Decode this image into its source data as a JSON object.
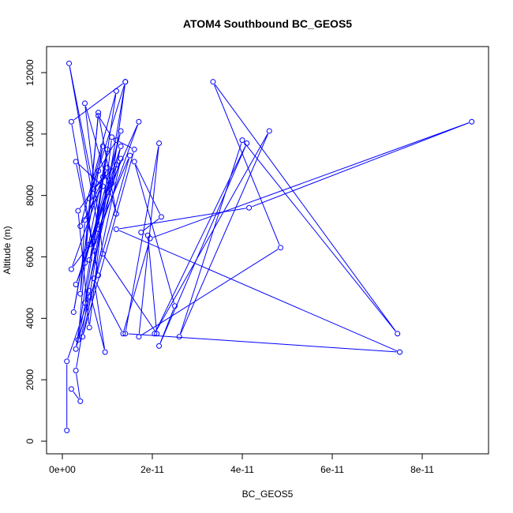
{
  "chart_data": {
    "type": "line",
    "title": "ATOM4 Southbound BC_GEOS5",
    "xlabel": "BC_GEOS5",
    "ylabel": "Altitude (m)",
    "xlim": [
      0,
      9.5e-11
    ],
    "ylim": [
      0,
      12800
    ],
    "x_ticks": [
      0,
      2e-11,
      4e-11,
      6e-11,
      8e-11
    ],
    "x_tick_labels": [
      "0e+00",
      "2e-11",
      "4e-11",
      "6e-11",
      "8e-11"
    ],
    "y_ticks": [
      0,
      2000,
      4000,
      6000,
      8000,
      10000,
      12000
    ],
    "y_tick_labels": [
      "0",
      "2000",
      "4000",
      "6000",
      "8000",
      "10000",
      "12000"
    ],
    "grid": false,
    "legend": "none",
    "series_color": "#0000ff",
    "marker": "open-circle",
    "series": [
      {
        "x": [
          1e-12,
          1e-12,
          6e-12,
          1.4e-11,
          2e-12,
          8e-12,
          7e-12,
          3e-12,
          9e-12,
          4e-12,
          1.2e-11,
          5e-12,
          1.3e-11,
          6e-12,
          2e-12,
          1e-11,
          5e-12,
          4e-12,
          8e-12,
          1.1e-11,
          6e-12,
          3.5e-12,
          9e-12,
          7e-12,
          1.3e-11,
          5e-12,
          1e-11,
          3e-12,
          1.5e-11,
          8e-12,
          1.5e-12,
          7e-12,
          1.2e-11,
          3e-12,
          1.1e-11,
          1.4e-11,
          6e-12,
          9e-12,
          2.5e-12,
          8e-12,
          1.2e-11,
          1.6e-11,
          4.5e-12,
          1.3e-11,
          6e-12,
          1.7e-11,
          1e-11,
          3.5e-12,
          8e-12,
          1.2e-11,
          5e-12,
          9e-12,
          2.1e-11,
          1.9e-11,
          1.75e-11,
          2.2e-11,
          1.6e-11,
          2.5e-11,
          2.15e-11,
          4.1e-11,
          2.05e-11,
          4.6e-11,
          2.6e-11,
          4e-11,
          7.45e-11,
          3.35e-11,
          4.85e-11,
          1.7e-11,
          2.15e-11,
          1.4e-11,
          7.5e-11,
          1.2e-11,
          4.15e-11,
          9.1e-11,
          1.95e-11,
          1.35e-11,
          7e-12,
          9.5e-12,
          6e-12,
          3e-12,
          4e-12,
          2e-12
        ],
        "y": [
          350,
          2600,
          4700,
          11700,
          10400,
          5400,
          6200,
          9100,
          8300,
          7000,
          11400,
          4500,
          9600,
          6400,
          5600,
          8900,
          7200,
          4800,
          10600,
          9900,
          3700,
          7500,
          8600,
          6500,
          10100,
          5800,
          9500,
          3000,
          9300,
          6900,
          12300,
          8200,
          9000,
          5100,
          8400,
          11700,
          7900,
          9600,
          4200,
          8800,
          9800,
          9500,
          3400,
          9200,
          5900,
          10400,
          8100,
          3300,
          10700,
          7400,
          11000,
          6100,
          3500,
          6700,
          6800,
          7300,
          9100,
          4400,
          3100,
          9700,
          3500,
          10100,
          3400,
          9800,
          3500,
          11700,
          6300,
          3400,
          9700,
          3500,
          2900,
          6900,
          7600,
          10400,
          6600,
          3500,
          5300,
          2900,
          4900,
          2300,
          1300,
          1700
        ]
      }
    ]
  }
}
